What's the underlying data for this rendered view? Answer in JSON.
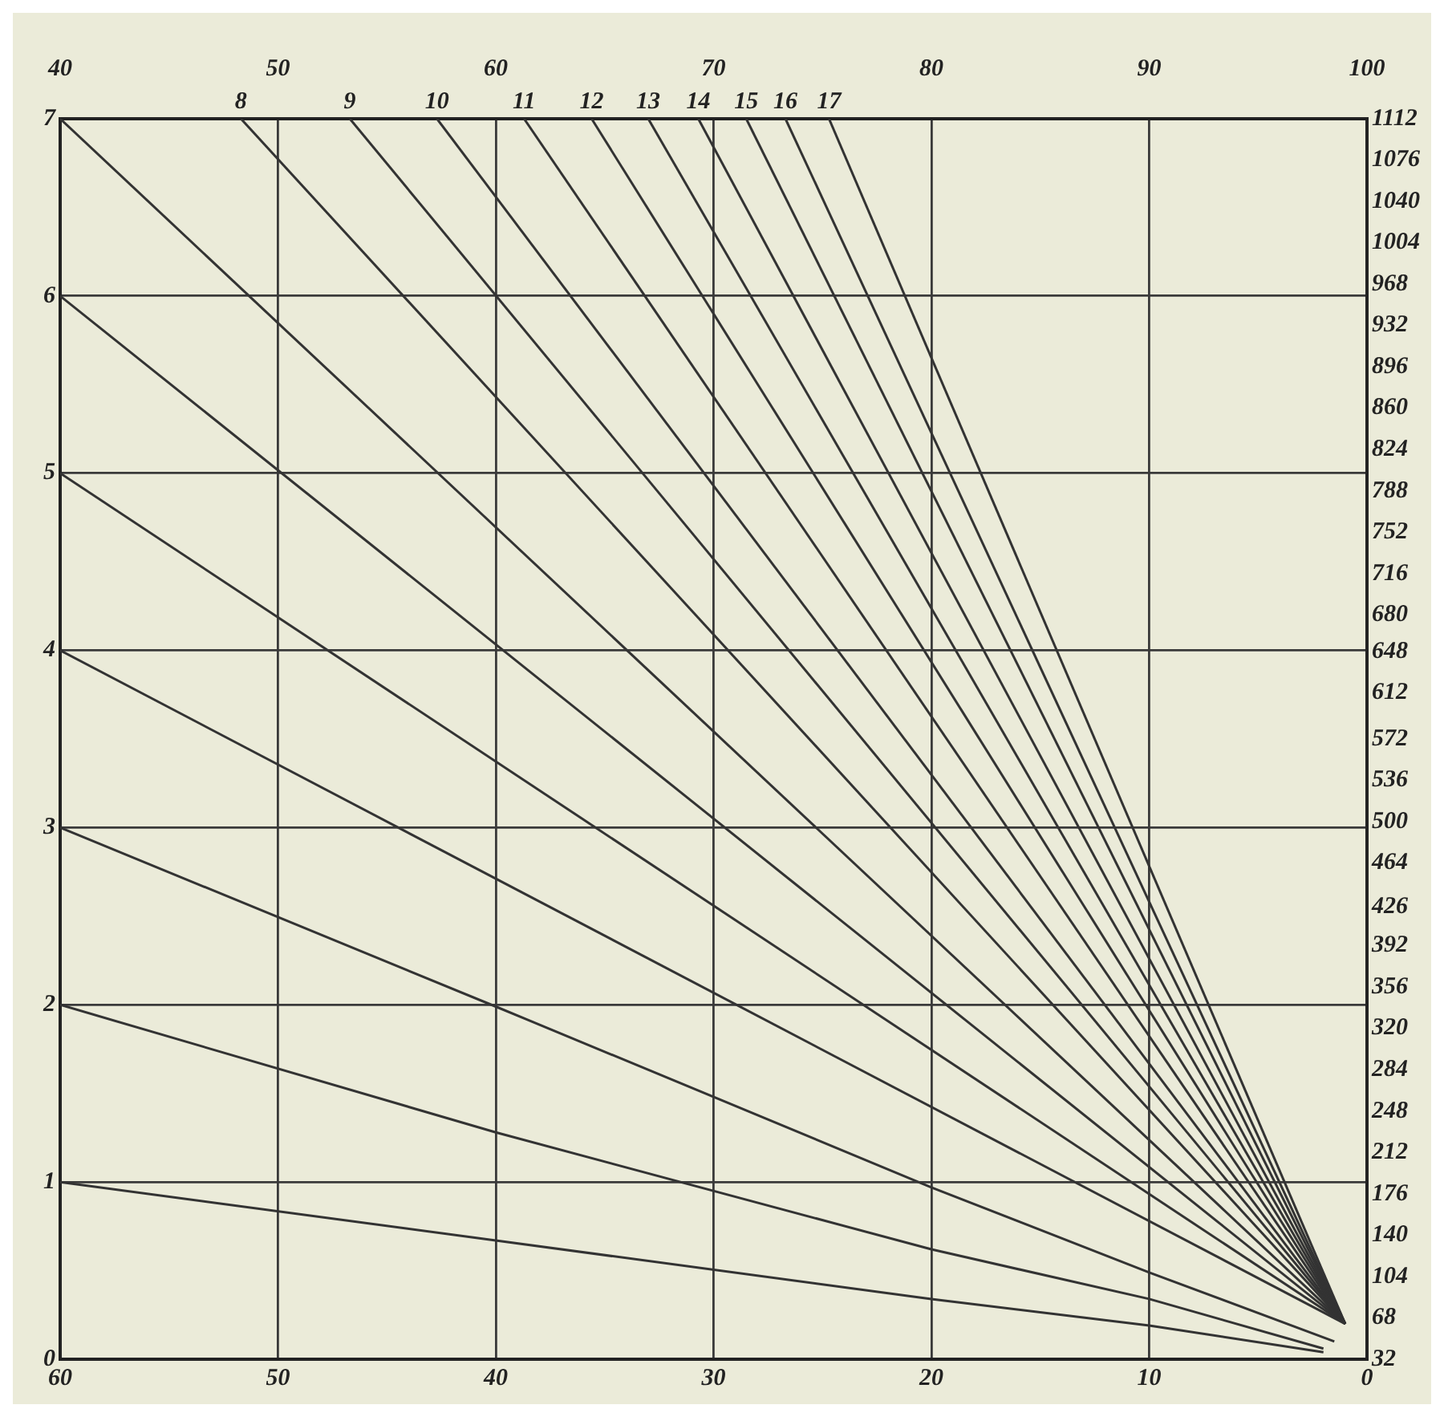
{
  "chart_data": {
    "type": "line",
    "xlim": [
      60,
      0
    ],
    "xticks": [
      60,
      50,
      40,
      30,
      20,
      10,
      0
    ],
    "x2lim": [
      40,
      100
    ],
    "x2ticks": [
      40,
      50,
      60,
      70,
      80,
      90,
      100
    ],
    "ylim": [
      0,
      7
    ],
    "yticks": [
      0,
      1,
      2,
      3,
      4,
      5,
      6,
      7
    ],
    "y2lim": [
      32,
      1112
    ],
    "y2ticks": [
      32,
      68,
      104,
      140,
      176,
      212,
      248,
      284,
      320,
      356,
      392,
      426,
      464,
      500,
      536,
      572,
      612,
      648,
      680,
      716,
      752,
      788,
      824,
      860,
      896,
      932,
      968,
      1004,
      1040,
      1076,
      1112
    ],
    "grid": true,
    "legend": false,
    "marker": "none",
    "line_style": "solid",
    "series": [
      {
        "color": "#333333",
        "x": [
          60,
          40,
          20,
          10,
          2
        ],
        "values": [
          1,
          0.67,
          0.34,
          0.19,
          0.04
        ]
      },
      {
        "color": "#333333",
        "x": [
          60,
          40,
          20,
          10,
          2
        ],
        "values": [
          2,
          1.28,
          0.62,
          0.34,
          0.06
        ]
      },
      {
        "color": "#333333",
        "x": [
          60,
          40,
          20,
          10,
          1.5
        ],
        "values": [
          3,
          1.99,
          0.97,
          0.49,
          0.1
        ]
      },
      {
        "color": "#333333",
        "x": [
          60,
          1
        ],
        "values": [
          4,
          0.2
        ]
      },
      {
        "color": "#333333",
        "x": [
          60,
          1
        ],
        "values": [
          5,
          0.2
        ]
      },
      {
        "color": "#333333",
        "x": [
          60,
          1
        ],
        "values": [
          6,
          0.2
        ]
      },
      {
        "color": "#333333",
        "x": [
          60,
          1
        ],
        "values": [
          7,
          0.2
        ]
      },
      {
        "name": "8",
        "color": "#333333",
        "x": [
          51.7,
          1
        ],
        "values": [
          7,
          0.2
        ]
      },
      {
        "name": "9",
        "color": "#333333",
        "x": [
          46.7,
          1
        ],
        "values": [
          7,
          0.2
        ]
      },
      {
        "name": "10",
        "color": "#333333",
        "x": [
          42.7,
          1
        ],
        "values": [
          7,
          0.2
        ]
      },
      {
        "name": "11",
        "color": "#333333",
        "x": [
          38.7,
          1
        ],
        "values": [
          7,
          0.2
        ]
      },
      {
        "name": "12",
        "color": "#333333",
        "x": [
          35.6,
          1
        ],
        "values": [
          7,
          0.2
        ]
      },
      {
        "name": "13",
        "color": "#333333",
        "x": [
          33.0,
          1
        ],
        "values": [
          7,
          0.2
        ]
      },
      {
        "name": "14",
        "color": "#333333",
        "x": [
          30.7,
          1
        ],
        "values": [
          7,
          0.2
        ]
      },
      {
        "name": "15",
        "color": "#333333",
        "x": [
          28.5,
          1
        ],
        "values": [
          7,
          0.2
        ]
      },
      {
        "name": "16",
        "color": "#333333",
        "x": [
          26.7,
          1
        ],
        "values": [
          7,
          0.2
        ]
      },
      {
        "name": "17",
        "color": "#333333",
        "x": [
          24.7,
          1
        ],
        "values": [
          7,
          0.2
        ]
      }
    ]
  }
}
